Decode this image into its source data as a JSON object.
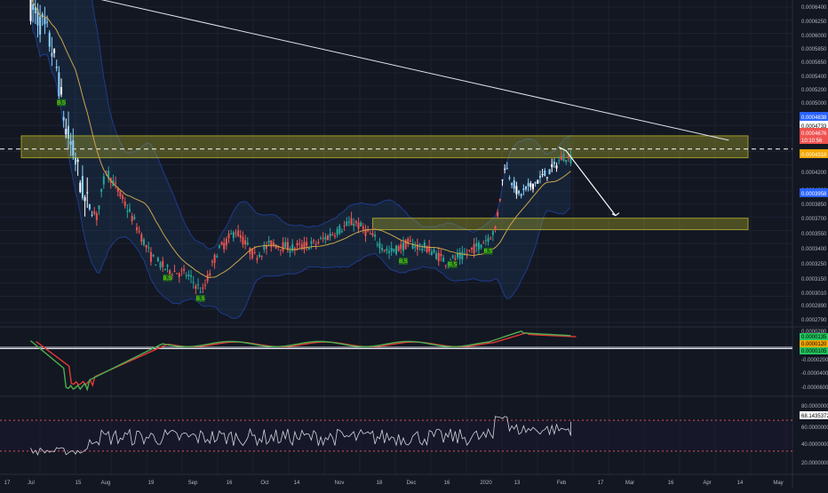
{
  "colors": {
    "background": "#131722",
    "grid": "#1e2230",
    "bull": "#26a69a",
    "bear": "#ef5350",
    "zone_fill": "#b8b527",
    "bb_fill": "#1c3a5e",
    "bb_line": "#2962ff",
    "ma_line": "#c8a64a",
    "macd_line": "#4caf50",
    "signal_line": "#e53935",
    "rsi_line": "#d1d4dc",
    "axis_text": "#b2b5be",
    "hline_zero": "#e0e3eb"
  },
  "chart_data": [
    {
      "type": "candlestick",
      "pane": "price",
      "y_ticks": [
        "0.0006400",
        "0.0006250",
        "0.0006000",
        "0.0005850",
        "0.0005650",
        "0.0005400",
        "0.0005200",
        "0.0005000",
        "0.0004838",
        "0.0004733",
        "0.0004676",
        "10:10:56",
        "0.0004318",
        "0.0004200",
        "0.0004000",
        "0.0003958",
        "0.0003850",
        "0.0003700",
        "0.0003550",
        "0.0003400",
        "0.0003250",
        "0.0003150",
        "0.0003010",
        "0.0002890",
        "0.0002790"
      ],
      "badges": [
        {
          "text": "0.0004838",
          "color": "#2962ff"
        },
        {
          "text": "0.0004733",
          "color": "#ffffff"
        },
        {
          "text": "0.0004676",
          "color": "#ef5350"
        },
        {
          "text": "10:10:56",
          "color": "#ef5350"
        },
        {
          "text": "0.0004318",
          "color": "#f7a600"
        },
        {
          "text": "0.0003958",
          "color": "#2962ff"
        }
      ],
      "ylim": [
        0.000275,
        0.000648
      ],
      "zones": [
        {
          "top": 0.000493,
          "bottom": 0.000468
        },
        {
          "top": 0.000399,
          "bottom": 0.000386
        }
      ],
      "dashed_level": 0.000478,
      "trendline": [
        {
          "date": "2019-07-19",
          "value": 0.000652
        },
        {
          "date": "2020-04-16",
          "value": 0.000488
        }
      ],
      "arrow": [
        {
          "date": "2020-02-07",
          "value": 0.000476
        },
        {
          "date": "2020-02-28",
          "value": 0.000402
        }
      ],
      "signal_labels": [
        "B,S",
        "B,S",
        "B,S",
        "B,S",
        "B,S",
        "B,S"
      ]
    },
    {
      "type": "line",
      "pane": "macd",
      "y_ticks": [
        "0.0000280",
        "0.0000135",
        "0.0000120",
        "0.0000105",
        "-0.0000200",
        "-0.0000400",
        "-0.0000600"
      ],
      "badges": [
        {
          "text": "0.0000135",
          "color": "#22c55e"
        },
        {
          "text": "0.0000120",
          "color": "#f7a600"
        },
        {
          "text": "0.0000105",
          "color": "#22c55e"
        }
      ],
      "series": [
        {
          "name": "",
          "color": "#4caf50"
        },
        {
          "name": "",
          "color": "#e53935"
        }
      ]
    },
    {
      "type": "line",
      "pane": "rsi",
      "y_ticks": [
        "80.0000000",
        "68.1435372",
        "60.0000000",
        "40.0000000",
        "20.0000000"
      ],
      "badges": [
        {
          "text": "68.1435372",
          "color": "#ffffff"
        }
      ],
      "levels": [
        70,
        30
      ],
      "last_value": 68.1435372
    }
  ],
  "x_axis": {
    "ticks": [
      "17",
      "Jul",
      "15",
      "Aug",
      "19",
      "Sep",
      "16",
      "Oct",
      "14",
      "Nov",
      "18",
      "Dec",
      "16",
      "2020",
      "13",
      "Feb",
      "17",
      "Mar",
      "16",
      "Apr",
      "14",
      "May"
    ]
  },
  "grid": true
}
